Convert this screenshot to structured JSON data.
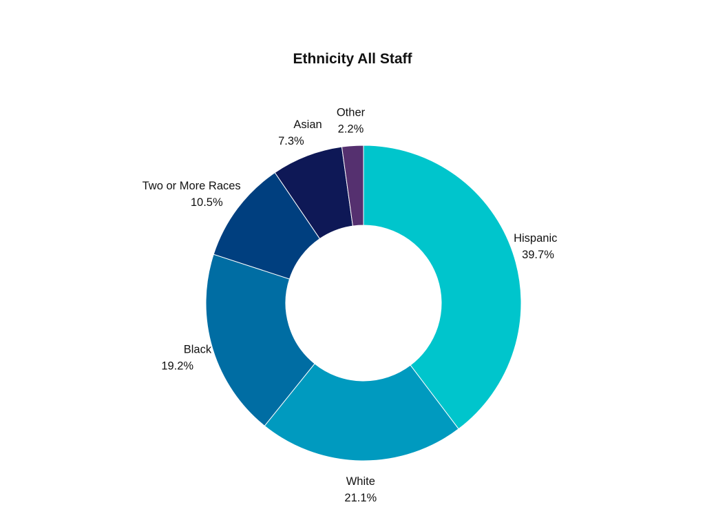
{
  "chart_data": {
    "type": "pie",
    "title": "Ethnicity All Staff",
    "donut": true,
    "legend": "none",
    "slices": [
      {
        "label": "Hispanic",
        "value": 39.7,
        "value_label": "39.7%",
        "color": "#00C5CC"
      },
      {
        "label": "White",
        "value": 21.1,
        "value_label": "21.1%",
        "color": "#009ABF"
      },
      {
        "label": "Black",
        "value": 19.2,
        "value_label": "19.2%",
        "color": "#006DA3"
      },
      {
        "label": "Two or More Races",
        "value": 10.5,
        "value_label": "10.5%",
        "color": "#003F7F"
      },
      {
        "label": "Asian",
        "value": 7.3,
        "value_label": "7.3%",
        "color": "#0E1856"
      },
      {
        "label": "Other",
        "value": 2.2,
        "value_label": "2.2%",
        "color": "#55306F"
      }
    ]
  }
}
